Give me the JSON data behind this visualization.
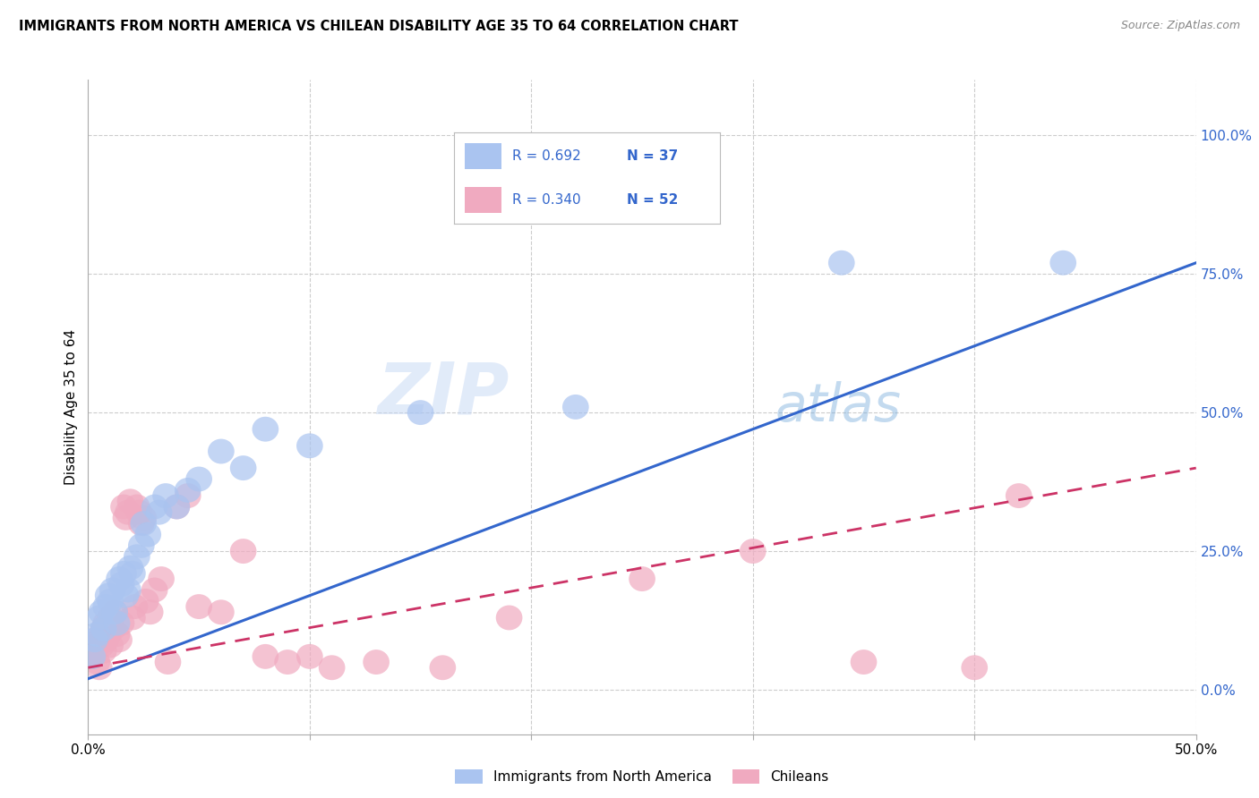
{
  "title": "IMMIGRANTS FROM NORTH AMERICA VS CHILEAN DISABILITY AGE 35 TO 64 CORRELATION CHART",
  "source": "Source: ZipAtlas.com",
  "ylabel": "Disability Age 35 to 64",
  "right_yticks": [
    "0.0%",
    "25.0%",
    "50.0%",
    "75.0%",
    "100.0%"
  ],
  "right_ytick_vals": [
    0.0,
    0.25,
    0.5,
    0.75,
    1.0
  ],
  "xlim": [
    0.0,
    0.5
  ],
  "ylim": [
    -0.08,
    1.1
  ],
  "legend_r1": "R = 0.692",
  "legend_n1": "N = 37",
  "legend_r2": "R = 0.340",
  "legend_n2": "N = 52",
  "blue_color": "#aac4f0",
  "pink_color": "#f0aac0",
  "line_blue": "#3366cc",
  "line_pink": "#cc3366",
  "watermark_zip": "ZIP",
  "watermark_atlas": "atlas",
  "blue_line_x0": 0.0,
  "blue_line_y0": 0.02,
  "blue_line_x1": 0.5,
  "blue_line_y1": 0.77,
  "pink_line_x0": 0.0,
  "pink_line_y0": 0.04,
  "pink_line_x1": 0.5,
  "pink_line_y1": 0.4,
  "blue_scatter_x": [
    0.002,
    0.003,
    0.004,
    0.005,
    0.006,
    0.007,
    0.008,
    0.009,
    0.01,
    0.011,
    0.012,
    0.013,
    0.014,
    0.015,
    0.016,
    0.017,
    0.018,
    0.019,
    0.02,
    0.022,
    0.024,
    0.025,
    0.027,
    0.03,
    0.032,
    0.035,
    0.04,
    0.045,
    0.05,
    0.06,
    0.07,
    0.08,
    0.1,
    0.15,
    0.22,
    0.34,
    0.44
  ],
  "blue_scatter_y": [
    0.06,
    0.09,
    0.1,
    0.13,
    0.14,
    0.11,
    0.15,
    0.17,
    0.16,
    0.18,
    0.14,
    0.12,
    0.2,
    0.19,
    0.21,
    0.17,
    0.18,
    0.22,
    0.21,
    0.24,
    0.26,
    0.3,
    0.28,
    0.33,
    0.32,
    0.35,
    0.33,
    0.36,
    0.38,
    0.43,
    0.4,
    0.47,
    0.44,
    0.5,
    0.51,
    0.77,
    0.77
  ],
  "pink_scatter_x": [
    0.002,
    0.003,
    0.004,
    0.004,
    0.005,
    0.005,
    0.006,
    0.006,
    0.007,
    0.007,
    0.008,
    0.008,
    0.009,
    0.01,
    0.01,
    0.011,
    0.012,
    0.013,
    0.014,
    0.015,
    0.016,
    0.017,
    0.018,
    0.019,
    0.02,
    0.021,
    0.022,
    0.023,
    0.024,
    0.025,
    0.026,
    0.028,
    0.03,
    0.033,
    0.036,
    0.04,
    0.045,
    0.05,
    0.06,
    0.07,
    0.08,
    0.09,
    0.1,
    0.11,
    0.13,
    0.16,
    0.19,
    0.25,
    0.3,
    0.35,
    0.4,
    0.42
  ],
  "pink_scatter_y": [
    0.06,
    0.07,
    0.05,
    0.08,
    0.09,
    0.04,
    0.08,
    0.1,
    0.07,
    0.11,
    0.09,
    0.12,
    0.1,
    0.08,
    0.13,
    0.11,
    0.14,
    0.1,
    0.09,
    0.12,
    0.33,
    0.31,
    0.32,
    0.34,
    0.13,
    0.15,
    0.33,
    0.32,
    0.3,
    0.31,
    0.16,
    0.14,
    0.18,
    0.2,
    0.05,
    0.33,
    0.35,
    0.15,
    0.14,
    0.25,
    0.06,
    0.05,
    0.06,
    0.04,
    0.05,
    0.04,
    0.13,
    0.2,
    0.25,
    0.05,
    0.04,
    0.35
  ]
}
